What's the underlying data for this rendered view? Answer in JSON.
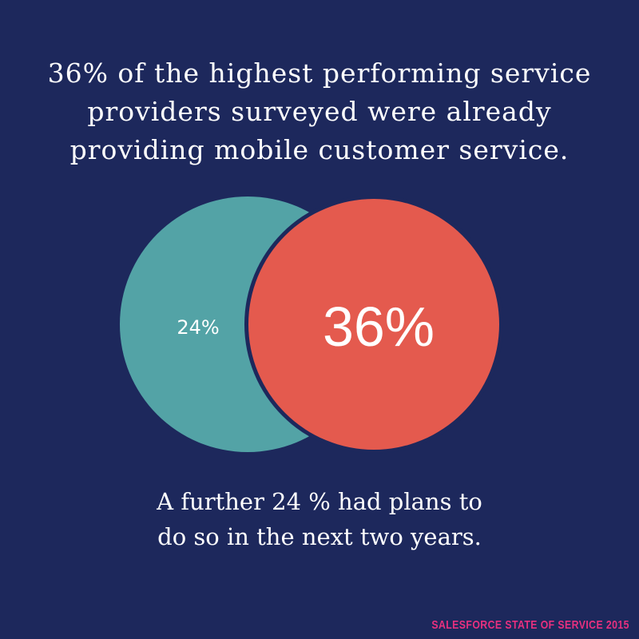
{
  "headline": {
    "lines": [
      "36% of the highest performing service",
      "providers surveyed were already",
      "providing mobile customer service."
    ]
  },
  "venn": {
    "left_label": "24%",
    "right_label": "36%",
    "left_color": "#53a3a6",
    "right_color": "#e45a4e",
    "background_color": "#1d285c"
  },
  "subtext": {
    "lines": [
      "A further 24 % had plans to",
      "do so in the next two years."
    ]
  },
  "footer": {
    "source": "SALESFORCE STATE OF SERVICE 2015",
    "color": "#e8307f"
  }
}
